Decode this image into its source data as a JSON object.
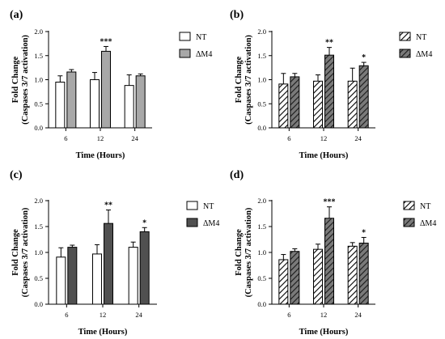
{
  "chart_data": [
    {
      "type": "bar",
      "panel_label": "(a)",
      "pattern": "solid",
      "categories": [
        "6",
        "12",
        "24"
      ],
      "xlabel": "Time (Hours)",
      "ylabel": "Fold Change",
      "ylabel_sub": "(Caspases 3/7 activation)",
      "ylim": [
        0,
        2.0
      ],
      "yticks": [
        "0.0",
        "0.5",
        "1.0",
        "1.5",
        "2.0"
      ],
      "ytick_values": [
        0,
        0.5,
        1.0,
        1.5,
        2.0
      ],
      "grid": false,
      "legend_position": "right",
      "series": [
        {
          "name": "NT",
          "values": [
            0.95,
            1.0,
            0.88
          ],
          "errors": [
            0.13,
            0.15,
            0.22
          ],
          "color": "#ffffff"
        },
        {
          "name": "ΔM4",
          "values": [
            1.16,
            1.59,
            1.08
          ],
          "errors": [
            0.05,
            0.1,
            0.04
          ],
          "color": "#a8a8a8"
        }
      ],
      "significance": [
        {
          "category_index": 1,
          "label": "***"
        }
      ]
    },
    {
      "type": "bar",
      "panel_label": "(b)",
      "pattern": "hatched",
      "categories": [
        "6",
        "12",
        "24"
      ],
      "xlabel": "Time (Hours)",
      "ylabel": "Fold Change",
      "ylabel_sub": "(Caspases 3/7 activation)",
      "ylim": [
        0,
        2.0
      ],
      "yticks": [
        "0.0",
        "0.5",
        "1.0",
        "1.5",
        "2.0"
      ],
      "ytick_values": [
        0,
        0.5,
        1.0,
        1.5,
        2.0
      ],
      "grid": false,
      "legend_position": "right",
      "series": [
        {
          "name": "NT",
          "values": [
            0.91,
            0.97,
            0.97
          ],
          "errors": [
            0.22,
            0.13,
            0.27
          ],
          "color": "#ffffff"
        },
        {
          "name": "ΔM4",
          "values": [
            1.06,
            1.51,
            1.29
          ],
          "errors": [
            0.07,
            0.16,
            0.07
          ],
          "color": "#8a8a8a"
        }
      ],
      "significance": [
        {
          "category_index": 1,
          "label": "**"
        },
        {
          "category_index": 2,
          "label": "*"
        }
      ]
    },
    {
      "type": "bar",
      "panel_label": "(c)",
      "pattern": "solid",
      "categories": [
        "6",
        "12",
        "24"
      ],
      "xlabel": "Time (Hours)",
      "ylabel": "Fold Change",
      "ylabel_sub": "(Caspases 3/7 activation)",
      "ylim": [
        0,
        2.0
      ],
      "yticks": [
        "0.0",
        "0.5",
        "1.0",
        "1.5",
        "2.0"
      ],
      "ytick_values": [
        0,
        0.5,
        1.0,
        1.5,
        2.0
      ],
      "grid": false,
      "legend_position": "right",
      "series": [
        {
          "name": "NT",
          "values": [
            0.91,
            0.97,
            1.1
          ],
          "errors": [
            0.18,
            0.18,
            0.1
          ],
          "color": "#ffffff"
        },
        {
          "name": "ΔM4",
          "values": [
            1.1,
            1.56,
            1.4
          ],
          "errors": [
            0.04,
            0.26,
            0.08
          ],
          "color": "#505050"
        }
      ],
      "significance": [
        {
          "category_index": 1,
          "label": "**"
        },
        {
          "category_index": 2,
          "label": "*"
        }
      ]
    },
    {
      "type": "bar",
      "panel_label": "(d)",
      "pattern": "hatched",
      "categories": [
        "6",
        "12",
        "24"
      ],
      "xlabel": "Time (Hours)",
      "ylabel": "Fold Change",
      "ylabel_sub": "(Caspases 3/7 activation)",
      "ylim": [
        0,
        2.0
      ],
      "yticks": [
        "0.0",
        "0.5",
        "1.0",
        "1.5",
        "2.0"
      ],
      "ytick_values": [
        0,
        0.5,
        1.0,
        1.5,
        2.0
      ],
      "grid": false,
      "legend_position": "right",
      "series": [
        {
          "name": "NT",
          "values": [
            0.86,
            1.06,
            1.12
          ],
          "errors": [
            0.1,
            0.1,
            0.07
          ],
          "color": "#ffffff"
        },
        {
          "name": "ΔM4",
          "values": [
            1.02,
            1.66,
            1.18
          ],
          "errors": [
            0.05,
            0.22,
            0.11
          ],
          "color": "#5a5a5a"
        }
      ],
      "significance": [
        {
          "category_index": 1,
          "label": "***"
        },
        {
          "category_index": 2,
          "label": "*"
        }
      ]
    }
  ]
}
